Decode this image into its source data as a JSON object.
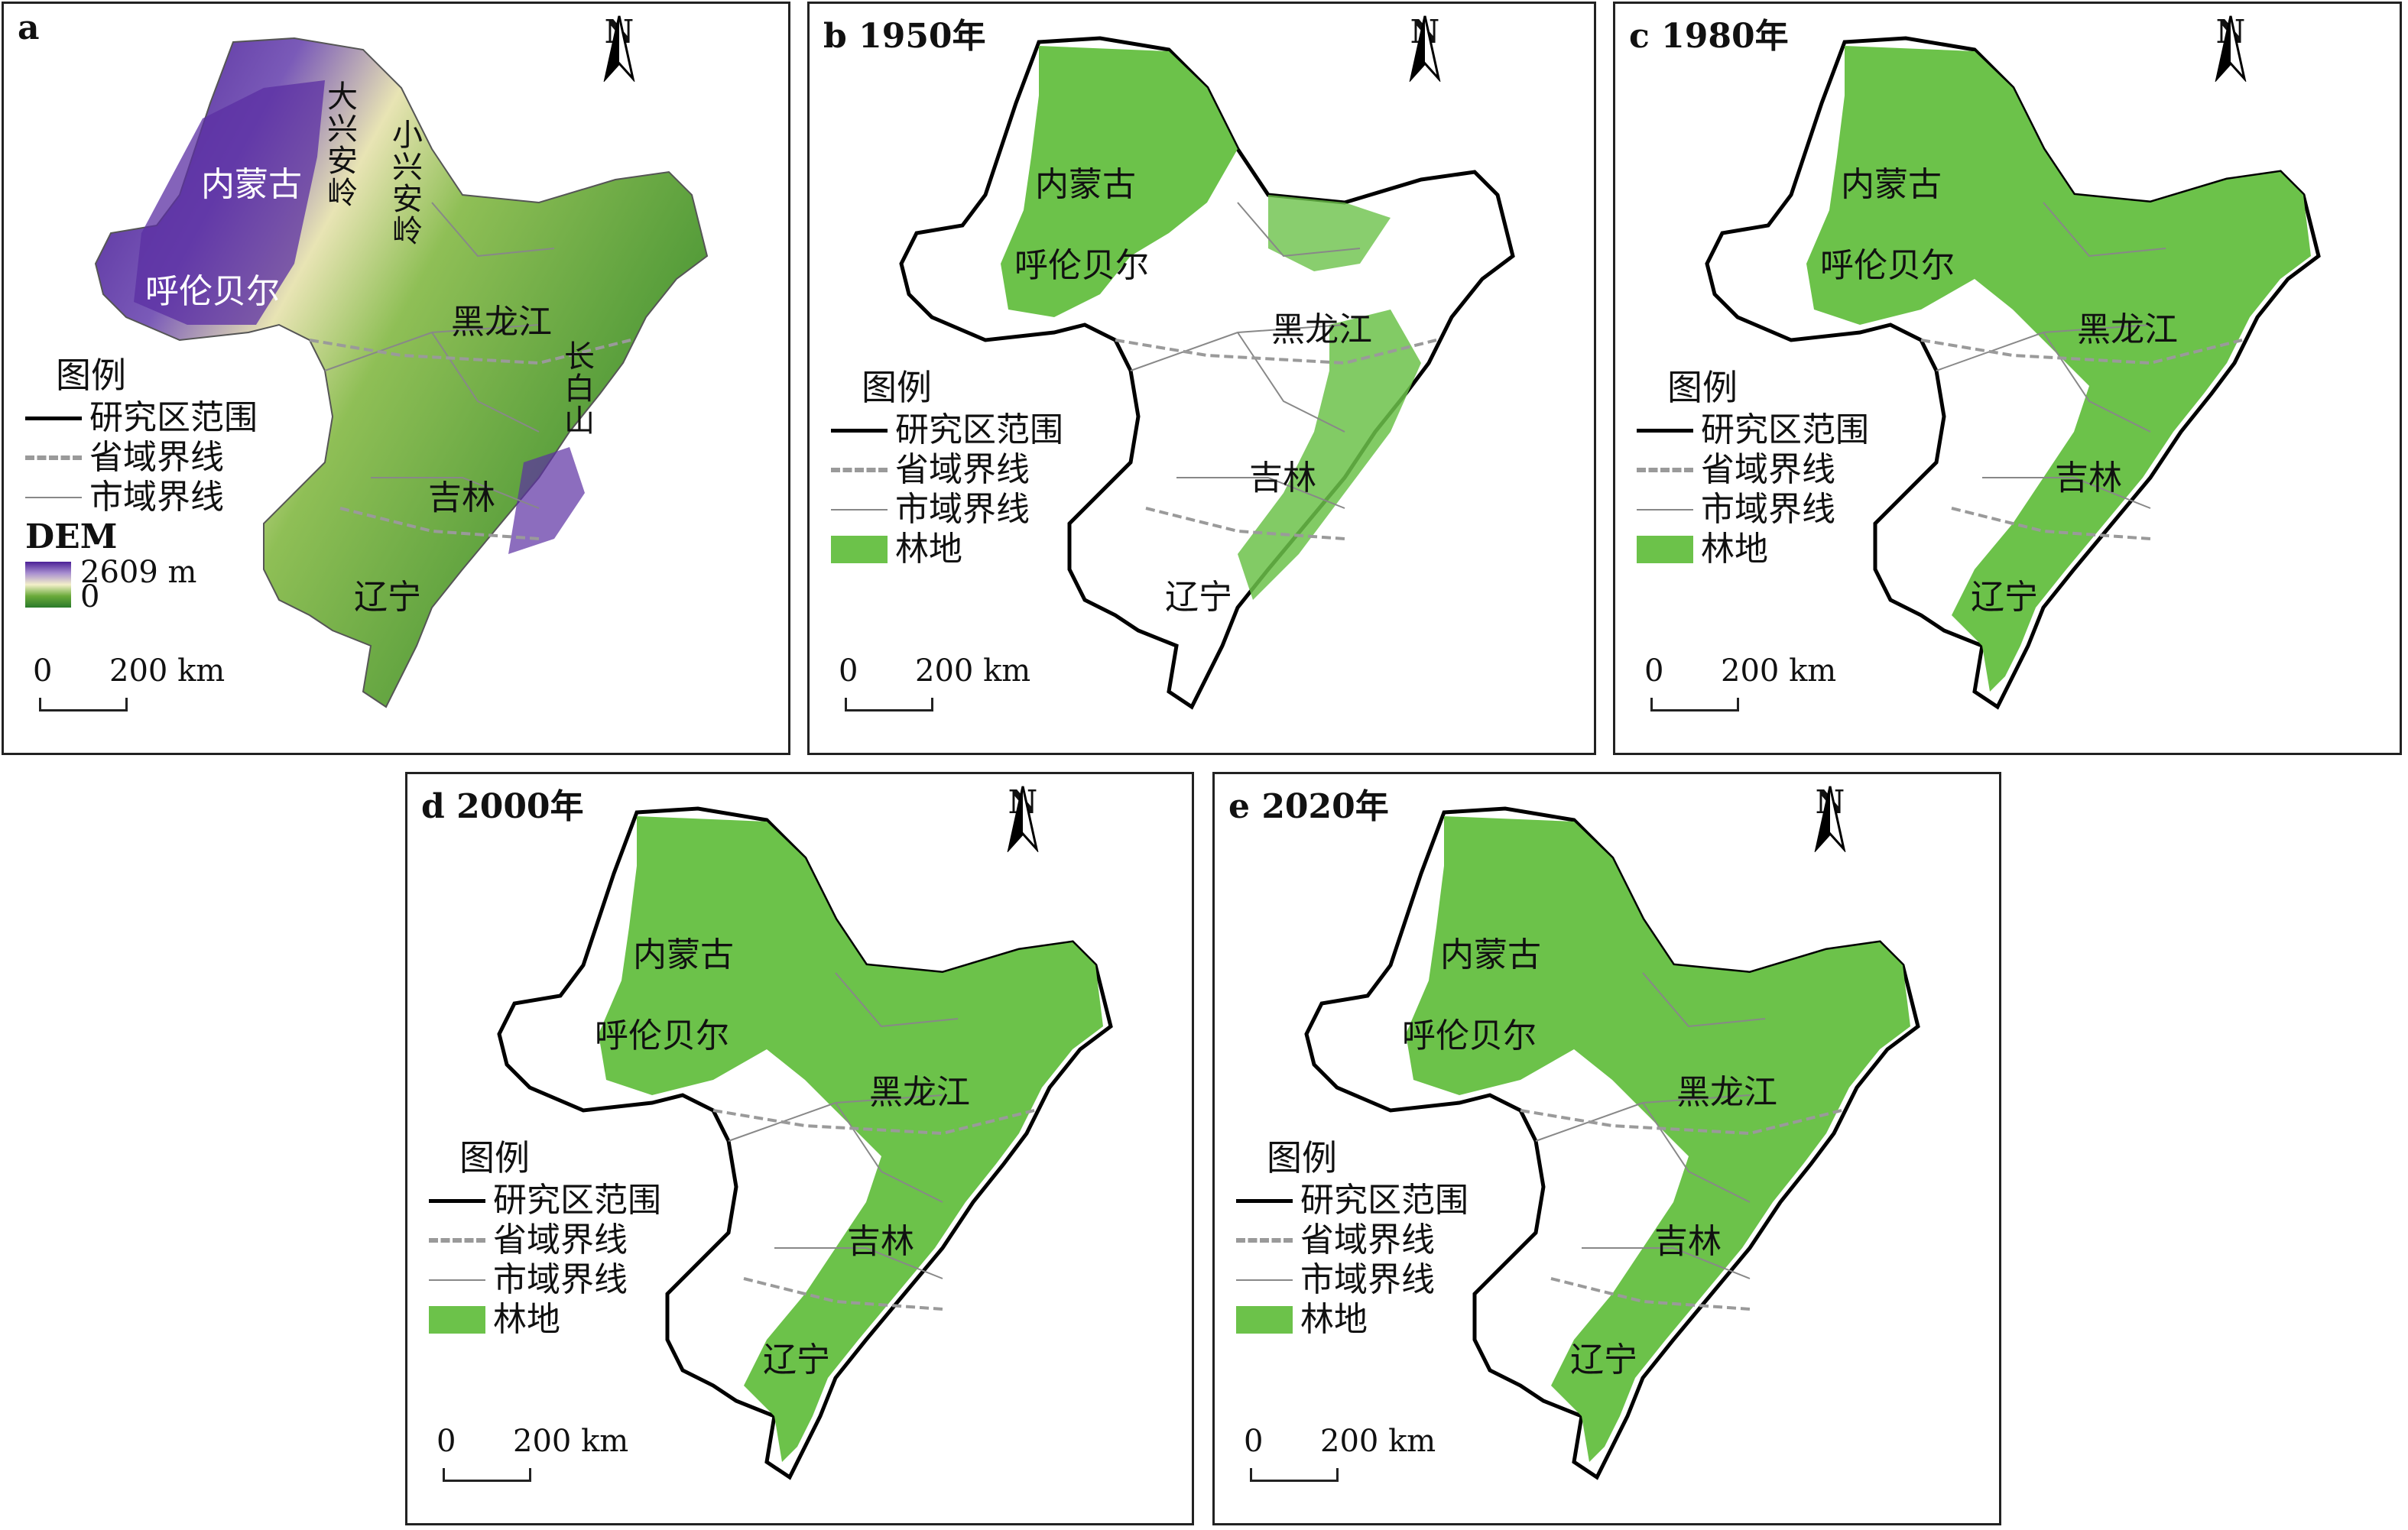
{
  "panels": [
    {
      "id": "a",
      "title": "a",
      "type": "dem",
      "labels": {
        "nmg": "内蒙古",
        "hlbe": "呼伦贝尔",
        "hlj": "黑龙江",
        "jl": "吉林",
        "ln": "辽宁",
        "dxal": "大兴安岭",
        "xxal": "小兴安岭",
        "cbs": "长白山"
      }
    },
    {
      "id": "b",
      "title": "b 1950年",
      "type": "forest",
      "forest_level": "low",
      "labels": {
        "nmg": "内蒙古",
        "hlbe": "呼伦贝尔",
        "hlj": "黑龙江",
        "jl": "吉林",
        "ln": "辽宁"
      }
    },
    {
      "id": "c",
      "title": "c 1980年",
      "type": "forest",
      "forest_level": "high",
      "labels": {
        "nmg": "内蒙古",
        "hlbe": "呼伦贝尔",
        "hlj": "黑龙江",
        "jl": "吉林",
        "ln": "辽宁"
      }
    },
    {
      "id": "d",
      "title": "d 2000年",
      "type": "forest",
      "forest_level": "high",
      "labels": {
        "nmg": "内蒙古",
        "hlbe": "呼伦贝尔",
        "hlj": "黑龙江",
        "jl": "吉林",
        "ln": "辽宁"
      }
    },
    {
      "id": "e",
      "title": "e 2020年",
      "type": "forest",
      "forest_level": "high",
      "labels": {
        "nmg": "内蒙古",
        "hlbe": "呼伦贝尔",
        "hlj": "黑龙江",
        "jl": "吉林",
        "ln": "辽宁"
      }
    }
  ],
  "north_label": "N",
  "legend": {
    "title": "图例",
    "study_area": "研究区范围",
    "province_boundary": "省域界线",
    "city_boundary": "市域界线",
    "forest": "林地",
    "dem_title": "DEM",
    "dem_max": "2609 m",
    "dem_min": "0"
  },
  "scale": {
    "zero": "0",
    "distance": "200 km"
  },
  "colors": {
    "forest": "#6cc24a",
    "dem_high": "#4b1f96",
    "dem_mid": "#f3f0c9",
    "dem_low": "#2a7a2a",
    "boundary": "#000000",
    "province": "#9a9a9a"
  }
}
